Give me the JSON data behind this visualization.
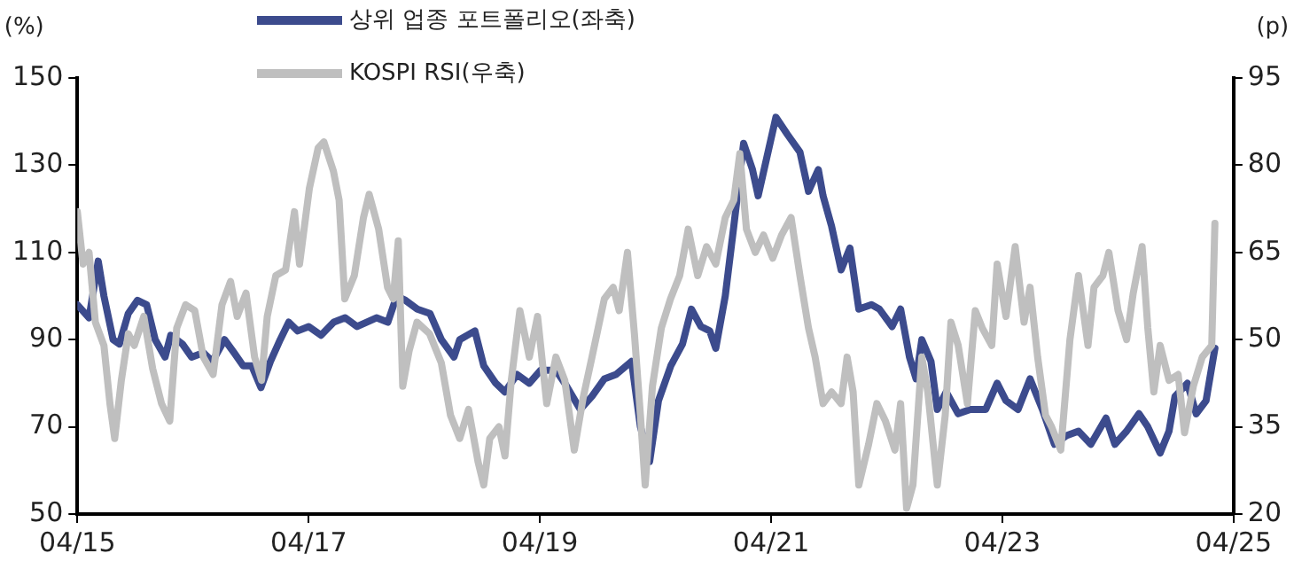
{
  "chart_data": {
    "type": "line",
    "ylabel": "(%)",
    "y2label": "(p)",
    "legend": "top",
    "grid": false,
    "marker": "none",
    "line_style": "solid",
    "xlim": [
      "2015-04",
      "2025-04"
    ],
    "xticks": [
      {
        "value": "2015-04",
        "label": "04/15"
      },
      {
        "value": "2017-04",
        "label": "04/17"
      },
      {
        "value": "2019-04",
        "label": "04/19"
      },
      {
        "value": "2021-04",
        "label": "04/21"
      },
      {
        "value": "2023-04",
        "label": "04/23"
      },
      {
        "value": "2025-04",
        "label": "04/25"
      }
    ],
    "ylim": [
      50,
      150
    ],
    "yticks": [
      50,
      70,
      90,
      110,
      130,
      150
    ],
    "y2lim": [
      20,
      95
    ],
    "y2ticks": [
      20,
      35,
      50,
      65,
      80,
      95
    ],
    "series": [
      {
        "name": "상위 업종 포트폴리오(좌축)",
        "color": "#3c4b8d",
        "axis": "y",
        "x": [
          "2015-04-01",
          "2015-05-08",
          "2015-06-06",
          "2015-06-24",
          "2015-07-23",
          "2015-08-12",
          "2015-09-09",
          "2015-10-08",
          "2015-11-06",
          "2015-12-03",
          "2016-01-03",
          "2016-01-21",
          "2016-02-27",
          "2016-03-27",
          "2016-05-03",
          "2016-06-01",
          "2016-07-09",
          "2016-08-08",
          "2016-09-06",
          "2016-10-03",
          "2016-11-01",
          "2016-12-01",
          "2017-01-01",
          "2017-01-28",
          "2017-02-25",
          "2017-04-01",
          "2017-05-10",
          "2017-06-19",
          "2017-07-25",
          "2017-09-01",
          "2017-11-01",
          "2017-12-07",
          "2018-01-04",
          "2018-02-01",
          "2018-03-10",
          "2018-04-19",
          "2018-05-25",
          "2018-07-04",
          "2018-07-22",
          "2018-09-08",
          "2018-10-06",
          "2018-11-13",
          "2018-12-12",
          "2019-01-19",
          "2019-02-27",
          "2019-04-04",
          "2019-05-22",
          "2019-06-19",
          "2019-08-07",
          "2019-09-13",
          "2019-10-22",
          "2019-11-28",
          "2020-01-16",
          "2020-02-13",
          "2020-03-13",
          "2020-04-10",
          "2020-05-19",
          "2020-06-25",
          "2020-07-23",
          "2020-08-22",
          "2020-09-19",
          "2020-10-08",
          "2020-11-07",
          "2020-12-04",
          "2021-01-04",
          "2021-02-01",
          "2021-02-19",
          "2021-03-19",
          "2021-04-16",
          "2021-05-23",
          "2021-07-01",
          "2021-07-28",
          "2021-08-28",
          "2021-09-12",
          "2021-10-09",
          "2021-11-08",
          "2021-12-06",
          "2022-01-03",
          "2022-02-12",
          "2022-03-09",
          "2022-04-18",
          "2022-05-15",
          "2022-06-12",
          "2022-07-03",
          "2022-07-21",
          "2022-08-19",
          "2022-09-08",
          "2022-10-06",
          "2022-11-13",
          "2022-12-21",
          "2023-02-08",
          "2023-03-16",
          "2023-04-13",
          "2023-05-21",
          "2023-06-28",
          "2023-08-06",
          "2023-09-13",
          "2023-10-21",
          "2023-11-28",
          "2024-01-06",
          "2024-02-23",
          "2024-03-22",
          "2024-04-28",
          "2024-06-06",
          "2024-07-04",
          "2024-08-12",
          "2024-09-09",
          "2024-09-28",
          "2024-11-06",
          "2024-12-04",
          "2025-01-04",
          "2025-02-01"
        ],
        "values": [
          98,
          95,
          108,
          100,
          90,
          89,
          96,
          99,
          98,
          90,
          86,
          91,
          89,
          86,
          87,
          85,
          90,
          87,
          84,
          84,
          79,
          85,
          90,
          94,
          92,
          93,
          91,
          94,
          95,
          93,
          95,
          94,
          100,
          99,
          97,
          96,
          90,
          86,
          90,
          92,
          84,
          80,
          78,
          82,
          80,
          83,
          83,
          80,
          74,
          77,
          81,
          82,
          85,
          70,
          62,
          76,
          84,
          89,
          97,
          93,
          92,
          88,
          100,
          116,
          135,
          129,
          123,
          132,
          141,
          137,
          133,
          124,
          129,
          123,
          116,
          106,
          111,
          97,
          98,
          97,
          93,
          97,
          86,
          81,
          90,
          85,
          74,
          78,
          73,
          74,
          74,
          80,
          76,
          74,
          81,
          74,
          66,
          68,
          69,
          66,
          72,
          66,
          69,
          73,
          70,
          64,
          69,
          77,
          80,
          73,
          76,
          88
        ]
      },
      {
        "name": "KOSPI RSI(우축)",
        "color": "#bfbfbf",
        "axis": "y2",
        "x": [
          "2015-04-01",
          "2015-04-19",
          "2015-05-08",
          "2015-05-28",
          "2015-06-24",
          "2015-07-13",
          "2015-07-28",
          "2015-08-18",
          "2015-09-09",
          "2015-09-28",
          "2015-10-28",
          "2015-11-25",
          "2015-12-23",
          "2016-01-18",
          "2016-02-09",
          "2016-03-08",
          "2016-04-06",
          "2016-05-03",
          "2016-06-03",
          "2016-07-01",
          "2016-07-28",
          "2016-08-18",
          "2016-09-15",
          "2016-10-12",
          "2016-11-03",
          "2016-11-21",
          "2016-12-18",
          "2017-01-18",
          "2017-02-15",
          "2017-03-03",
          "2017-04-03",
          "2017-05-01",
          "2017-05-19",
          "2017-06-18",
          "2017-07-06",
          "2017-07-24",
          "2017-08-23",
          "2017-09-21",
          "2017-10-09",
          "2017-11-08",
          "2017-12-06",
          "2017-12-24",
          "2018-01-09",
          "2018-01-23",
          "2018-02-12",
          "2018-03-09",
          "2018-04-18",
          "2018-05-25",
          "2018-06-23",
          "2018-07-22",
          "2018-08-19",
          "2018-09-18",
          "2018-10-06",
          "2018-10-25",
          "2018-11-23",
          "2018-12-12",
          "2019-01-01",
          "2019-01-28",
          "2019-02-27",
          "2019-03-25",
          "2019-04-23",
          "2019-05-22",
          "2019-06-19",
          "2019-07-19",
          "2019-08-16",
          "2019-09-13",
          "2019-10-22",
          "2019-11-19",
          "2019-12-08",
          "2020-01-03",
          "2020-01-25",
          "2020-02-13",
          "2020-02-28",
          "2020-03-22",
          "2020-04-19",
          "2020-05-18",
          "2020-06-16",
          "2020-07-13",
          "2020-08-12",
          "2020-09-09",
          "2020-10-08",
          "2020-11-07",
          "2020-12-04",
          "2020-12-23",
          "2021-01-13",
          "2021-02-10",
          "2021-03-08",
          "2021-04-06",
          "2021-05-04",
          "2021-06-03",
          "2021-07-01",
          "2021-07-28",
          "2021-08-18",
          "2021-09-12",
          "2021-10-09",
          "2021-11-08",
          "2021-11-27",
          "2021-12-16",
          "2022-01-03",
          "2022-02-03",
          "2022-03-01",
          "2022-03-28",
          "2022-04-27",
          "2022-05-15",
          "2022-06-03",
          "2022-06-23",
          "2022-07-21",
          "2022-08-09",
          "2022-09-08",
          "2022-10-03",
          "2022-10-21",
          "2022-11-13",
          "2022-12-12",
          "2023-01-06",
          "2023-01-28",
          "2023-02-27",
          "2023-03-16",
          "2023-04-13",
          "2023-05-12",
          "2023-06-09",
          "2023-06-28",
          "2023-07-22",
          "2023-08-16",
          "2023-09-04",
          "2023-10-03",
          "2023-11-01",
          "2023-11-28",
          "2023-12-28",
          "2024-01-16",
          "2024-02-13",
          "2024-03-03",
          "2024-04-01",
          "2024-04-28",
          "2024-05-19",
          "2024-06-16",
          "2024-07-04",
          "2024-07-23",
          "2024-08-12",
          "2024-09-09",
          "2024-10-08",
          "2024-10-28",
          "2024-11-25",
          "2024-12-23",
          "2025-01-22",
          "2025-02-01"
        ],
        "values": [
          72,
          63,
          65,
          53,
          49,
          39,
          33,
          43,
          51,
          49,
          54,
          45,
          39,
          36,
          52,
          56,
          55,
          47,
          44,
          56,
          60,
          54,
          58,
          47,
          43,
          54,
          61,
          62,
          72,
          63,
          76,
          83,
          84,
          79,
          74,
          57,
          61,
          71,
          75,
          69,
          59,
          57,
          67,
          42,
          48,
          53,
          51,
          46,
          37,
          33,
          38,
          29,
          25,
          33,
          35,
          30,
          43,
          55,
          47,
          54,
          39,
          47,
          43,
          31,
          40,
          47,
          57,
          59,
          55,
          65,
          51,
          37,
          25,
          42,
          52,
          57,
          61,
          69,
          61,
          66,
          63,
          71,
          74,
          82,
          69,
          65,
          68,
          64,
          68,
          71,
          61,
          52,
          47,
          39,
          41,
          39,
          47,
          41,
          25,
          32,
          39,
          36,
          31,
          39,
          21,
          25,
          47,
          41,
          25,
          37,
          53,
          49,
          39,
          55,
          52,
          49,
          63,
          54,
          66,
          53,
          59,
          47,
          37,
          35,
          31,
          50,
          61,
          49,
          59,
          61,
          65,
          55,
          50,
          58,
          66,
          52,
          41,
          49,
          43,
          44,
          34,
          42,
          47,
          49,
          70
        ]
      }
    ]
  }
}
